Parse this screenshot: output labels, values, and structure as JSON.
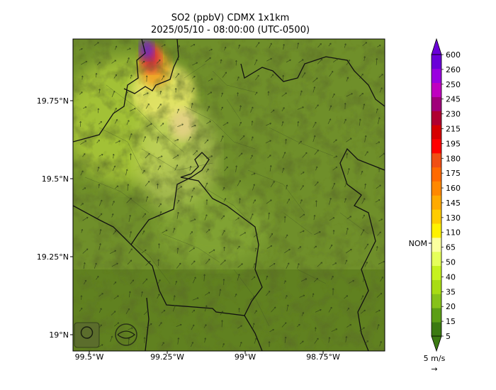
{
  "title": {
    "line1": "SO2 (ppbV) CDMX 1x1km",
    "line2": "2025/05/10 - 08:00:00 (UTC-0500)"
  },
  "axes": {
    "lat_ticks": [
      "19.75°N",
      "19.5°N",
      "19.25°N",
      "19°N"
    ],
    "lon_ticks": [
      "99.5°W",
      "99.25°W",
      "99°W",
      "98.75°W"
    ]
  },
  "colorbar": {
    "levels": [
      "5",
      "15",
      "20",
      "35",
      "40",
      "50",
      "65",
      "110",
      "130",
      "145",
      "160",
      "175",
      "180",
      "195",
      "215",
      "230",
      "245",
      "250",
      "260",
      "600"
    ],
    "colors": [
      "#3b7a12",
      "#5c9e16",
      "#86c21a",
      "#a8dc14",
      "#c6f21e",
      "#e6ff5a",
      "#fbff9e",
      "#fff200",
      "#ffcc00",
      "#ffaa00",
      "#ff8800",
      "#ff6a00",
      "#f04e14",
      "#ff0000",
      "#d60000",
      "#b00030",
      "#a0007a",
      "#c000c0",
      "#9a00e0",
      "#6a00d8"
    ],
    "nom_label": "NOM"
  },
  "wind_key": {
    "label": "5 m/s",
    "arrow": "→"
  }
}
